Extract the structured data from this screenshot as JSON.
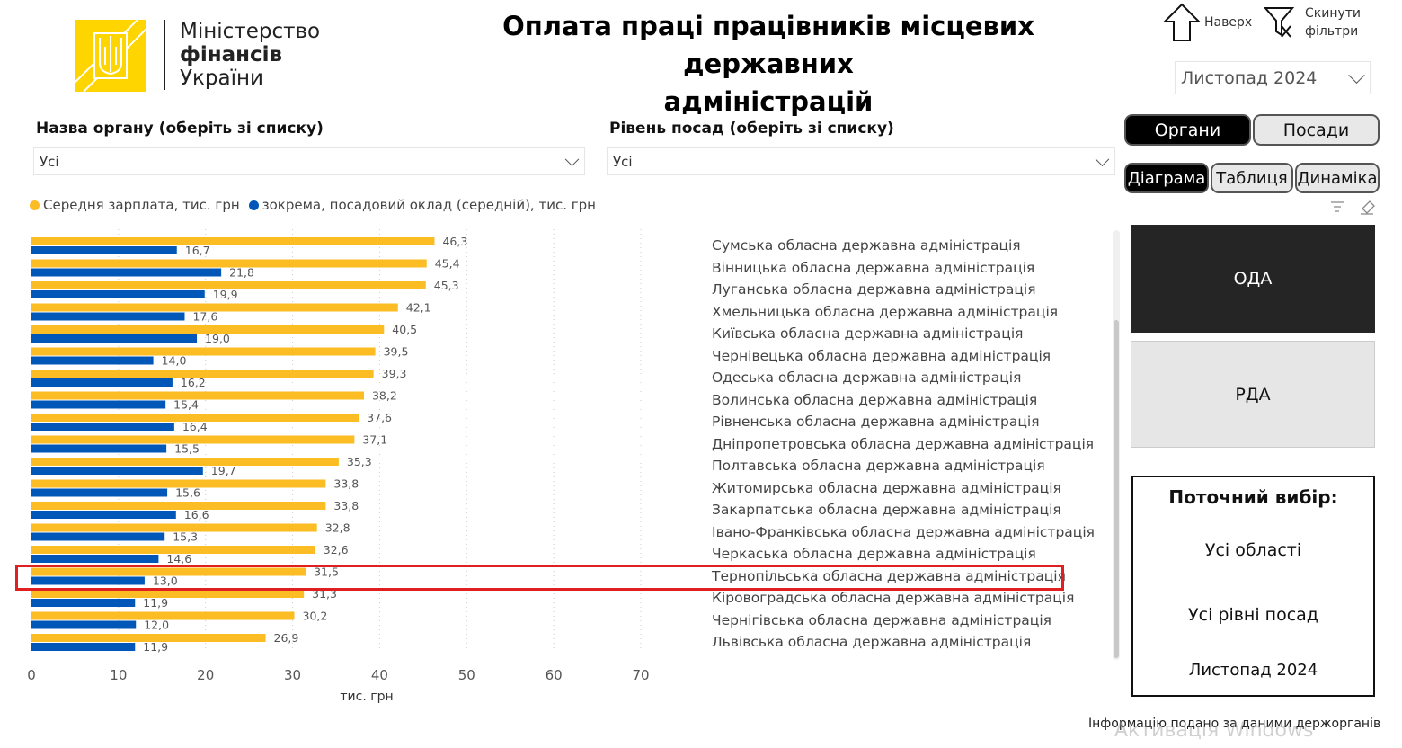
{
  "logo": {
    "line1": "Міністерство",
    "line2": "фінансів",
    "line3": "України"
  },
  "header": {
    "title_line1": "Оплата праці працівників місцевих державних",
    "title_line2": "адміністрацій"
  },
  "toolbar": {
    "up_label": "Наверх",
    "reset_label_1": "Скинути",
    "reset_label_2": "фільтри"
  },
  "period_select": {
    "value": "Листопад 2024"
  },
  "filters": {
    "organ": {
      "label": "Назва органу (оберіть зі списку)",
      "value": "Усі"
    },
    "level": {
      "label": "Рівень посад (оберіть зі списку)",
      "value": "Усі"
    }
  },
  "view_tabs": {
    "organs": "Органи",
    "positions": "Посади",
    "active": "Органи"
  },
  "chart_tabs": {
    "diagram": "Діаграма",
    "table": "Таблиця",
    "dynamics": "Динаміка",
    "active": "Діаграма"
  },
  "tiles": {
    "oda": "ОДА",
    "rda": "РДА",
    "active": "ОДА"
  },
  "current_selection": {
    "title": "Поточний вибір:",
    "region": "Усі області",
    "level": "Усі рівні посад",
    "period": "Листопад 2024"
  },
  "footer": {
    "note": "Інформацію подано за даними держорганів",
    "watermark": "Активація Windows"
  },
  "colors": {
    "salary": "#FBBD23",
    "base": "#0057B8",
    "highlight": "#E02020"
  },
  "chart_data": {
    "type": "bar",
    "orientation": "horizontal",
    "xlabel": "тис. грн",
    "xlim": [
      0,
      70
    ],
    "xticks": [
      "0",
      "10",
      "20",
      "30",
      "40",
      "50",
      "60",
      "70"
    ],
    "grid": true,
    "legend_position": "top-left",
    "highlighted_category": "Тернопільська обласна державна адміністрація",
    "categories": [
      "Сумська обласна державна адміністрація",
      "Вінницька обласна державна адміністрація",
      "Луганська обласна державна адміністрація",
      "Хмельницька обласна державна адміністрація",
      "Київська обласна державна адміністрація",
      "Чернівецька обласна державна адміністрація",
      "Одеська обласна державна адміністрація",
      "Волинська обласна державна адміністрація",
      "Рівненська обласна державна адміністрація",
      "Дніпропетровська обласна державна адміністрація",
      "Полтавська обласна державна адміністрація",
      "Житомирська обласна державна адміністрація",
      "Закарпатська обласна державна адміністрація",
      "Івано-Франківська обласна державна адміністрація",
      "Черкаська обласна державна адміністрація",
      "Тернопільська обласна державна адміністрація",
      "Кіровоградська обласна державна адміністрація",
      "Чернігівська обласна державна адміністрація",
      "Львівська обласна державна адміністрація"
    ],
    "series": [
      {
        "name": "Середня зарплата, тис. грн",
        "values": [
          46.3,
          45.4,
          45.3,
          42.1,
          40.5,
          39.5,
          39.3,
          38.2,
          37.6,
          37.1,
          35.3,
          33.8,
          33.8,
          32.8,
          32.6,
          31.5,
          31.3,
          30.2,
          26.9
        ],
        "labels": [
          "46,3",
          "45,4",
          "45,3",
          "42,1",
          "40,5",
          "39,5",
          "39,3",
          "38,2",
          "37,6",
          "37,1",
          "35,3",
          "33,8",
          "33,8",
          "32,8",
          "32,6",
          "31,5",
          "31,3",
          "30,2",
          "26,9"
        ]
      },
      {
        "name": "зокрема, посадовий оклад (середній), тис. грн",
        "values": [
          16.7,
          21.8,
          19.9,
          17.6,
          19.0,
          14.0,
          16.2,
          15.4,
          16.4,
          15.5,
          19.7,
          15.6,
          16.6,
          15.3,
          14.6,
          13.0,
          11.9,
          12.0,
          11.9
        ],
        "labels": [
          "16,7",
          "21,8",
          "19,9",
          "17,6",
          "19,0",
          "14,0",
          "16,2",
          "15,4",
          "16,4",
          "15,5",
          "19,7",
          "15,6",
          "16,6",
          "15,3",
          "14,6",
          "13,0",
          "11,9",
          "12,0",
          "11,9"
        ]
      }
    ]
  }
}
